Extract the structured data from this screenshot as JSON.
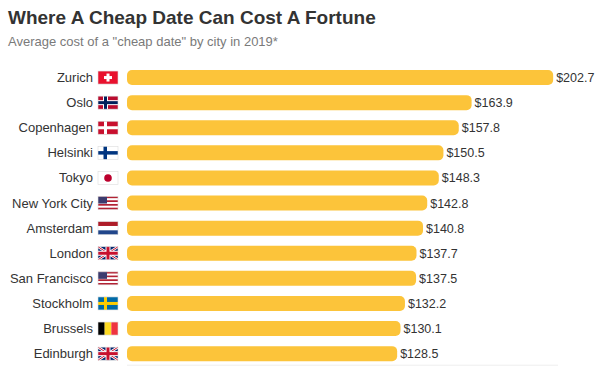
{
  "chart_data": {
    "type": "bar",
    "orientation": "horizontal",
    "title": "Where A Cheap Date Can Cost A Fortune",
    "subtitle": "Average cost of a \"cheap date\" by city in 2019*",
    "categories": [
      "Zurich",
      "Oslo",
      "Copenhagen",
      "Helsinki",
      "Tokyo",
      "New York City",
      "Amsterdam",
      "London",
      "San Francisco",
      "Stockholm",
      "Brussels",
      "Edinburgh"
    ],
    "values": [
      202.7,
      163.9,
      157.8,
      150.5,
      148.3,
      142.8,
      140.8,
      137.7,
      137.5,
      132.2,
      130.1,
      128.5
    ],
    "value_labels": [
      "$202.7",
      "$163.9",
      "$157.8",
      "$150.5",
      "$148.3",
      "$142.8",
      "$140.8",
      "$137.7",
      "$137.5",
      "$132.2",
      "$130.1",
      "$128.5"
    ],
    "color": "#fcc43a",
    "xlim": [
      0,
      205
    ],
    "data_labels": true,
    "tick_labels": false,
    "grid": false
  }
}
